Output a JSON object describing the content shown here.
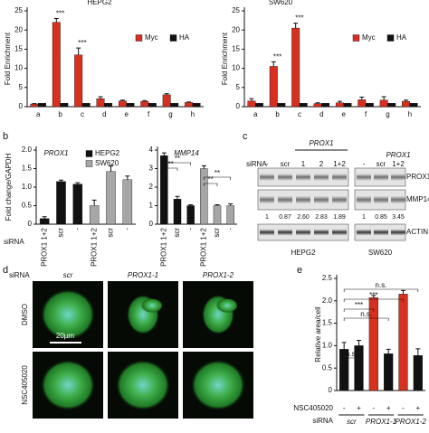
{
  "panels": [
    "b",
    "c",
    "d",
    "e"
  ],
  "chart_data": [
    {
      "type": "bar",
      "title": "HEPG2",
      "y_label": "Fold Enrichment",
      "categories": [
        "a",
        "b",
        "c",
        "d",
        "e",
        "f",
        "g",
        "h"
      ],
      "series": [
        {
          "name": "Myc",
          "color": "#d7301f",
          "values": [
            0.7,
            22,
            13.5,
            2.1,
            1.5,
            1.4,
            3.1,
            1.1
          ],
          "errors": [
            0.1,
            1.0,
            1.8,
            0.5,
            0.2,
            0.2,
            0.3,
            0.1
          ]
        },
        {
          "name": "HA",
          "color": "#111111",
          "values": [
            0.9,
            0.9,
            0.9,
            0.9,
            0.9,
            0.9,
            0.9,
            0.9
          ]
        }
      ],
      "ylim": [
        0,
        25
      ],
      "yticks": [
        0,
        5,
        10,
        15,
        20,
        25
      ],
      "legend": true,
      "annotations": [
        "***",
        "***"
      ]
    },
    {
      "type": "bar",
      "title": "SW620",
      "y_label": "Fold Enrichment",
      "categories": [
        "a",
        "b",
        "c",
        "d",
        "e",
        "f",
        "g",
        "h"
      ],
      "series": [
        {
          "name": "Myc",
          "color": "#d7301f",
          "values": [
            1.5,
            10.5,
            20.5,
            0.8,
            1.0,
            1.8,
            1.7,
            1.4
          ],
          "errors": [
            0.6,
            1.2,
            1.3,
            0.2,
            0.4,
            0.7,
            0.9,
            0.3
          ]
        },
        {
          "name": "HA",
          "color": "#111111",
          "values": [
            0.9,
            0.9,
            0.9,
            0.9,
            0.9,
            0.9,
            0.9,
            0.9
          ]
        }
      ],
      "ylim": [
        0,
        25
      ],
      "yticks": [
        0,
        5,
        10,
        15,
        20,
        25
      ],
      "legend": true,
      "annotations": [
        "***",
        "***"
      ]
    },
    {
      "type": "bar",
      "title": "PROX1",
      "y_label": "Fold change/GAPDH",
      "x_label": "siRNA",
      "categories": [
        "PROX1 1+2",
        "scr",
        "-",
        "PROX1 1+2",
        "scr",
        "-"
      ],
      "series": [
        {
          "name": "HEPG2",
          "color": "#111111",
          "values": [
            0.15,
            1.15,
            1.08,
            null,
            null,
            null
          ],
          "errors": [
            0.05,
            0.04,
            0.04,
            null,
            null,
            null
          ]
        },
        {
          "name": "SW620",
          "color": "#a6a6a6",
          "values": [
            null,
            null,
            null,
            0.5,
            1.42,
            1.2
          ],
          "errors": [
            null,
            null,
            null,
            0.15,
            0.15,
            0.1
          ]
        }
      ],
      "ylim": [
        0,
        2
      ],
      "yticks": [
        0,
        0.5,
        {
          "value": 1,
          "label": "1.0"
        },
        1.5,
        {
          "value": 2,
          "label": "2.0"
        }
      ],
      "legend": true,
      "annotations": []
    },
    {
      "type": "bar",
      "title": "MMP14",
      "categories": [
        "PROX1 1+2",
        "scr",
        "-",
        "PROX1 1+2",
        "scr",
        "-"
      ],
      "series": [
        {
          "color": "#111111",
          "values": [
            3.7,
            1.35,
            1.0,
            null,
            null,
            null
          ],
          "errors": [
            0.15,
            0.15,
            0.05,
            null,
            null,
            null
          ]
        },
        {
          "color": "#a6a6a6",
          "values": [
            null,
            null,
            null,
            3.0,
            1.0,
            1.0
          ],
          "errors": [
            null,
            null,
            null,
            0.15,
            0.05,
            0.1
          ]
        }
      ],
      "ylim": [
        0,
        4
      ],
      "yticks": [
        0,
        1,
        2,
        3,
        4
      ],
      "legend": false,
      "annotations": [
        "**",
        "**",
        "**",
        "**"
      ]
    },
    {
      "type": "bar",
      "y_label": "Relative area/cell",
      "categories": [
        "-",
        "+",
        "-",
        "+",
        "-",
        "+"
      ],
      "category_label": "NSC405020",
      "groups": [
        "scr",
        "PROX1-1",
        "PROX1-2"
      ],
      "group_label": "siRNA",
      "values": [
        0.92,
        1.0,
        2.07,
        0.82,
        2.15,
        0.78
      ],
      "errors": [
        0.15,
        0.12,
        0.05,
        0.1,
        0.08,
        0.15
      ],
      "colors": [
        "#111111",
        "#111111",
        "#d7301f",
        "#111111",
        "#d7301f",
        "#111111"
      ],
      "ylim": [
        0,
        2.5
      ],
      "yticks": [
        0,
        0.5,
        {
          "value": 1,
          "label": "1.0"
        },
        1.5,
        {
          "value": 2,
          "label": "2.0"
        },
        2.5
      ],
      "annotations": [
        "n.s.",
        "n.s.",
        "***",
        "***",
        "n.s."
      ]
    }
  ],
  "blot": {
    "siRNA": "siRNA",
    "lanes_hepg2": [
      "-",
      "scr",
      "1",
      "2",
      "1+2"
    ],
    "group_hepg2": "PROX1",
    "lanes_sw620": [
      "-",
      "scr",
      "1+2"
    ],
    "group_sw620": "PROX1",
    "rows": [
      "PROX1",
      "MMP14",
      "ACTIN"
    ],
    "quant_hepg2": [
      "1",
      "0.87",
      "2.60",
      "2.83",
      "1.89"
    ],
    "quant_sw620": [
      "1",
      "0.85",
      "3.45"
    ],
    "cells": [
      "HEPG2",
      "SW620"
    ]
  },
  "microscopy": {
    "siRNA": "siRNA",
    "columns": [
      "scr",
      "PROX1-1",
      "PROX1-2"
    ],
    "rows": [
      "DMSO",
      "NSC405020"
    ],
    "scale_bar": "20µm"
  }
}
